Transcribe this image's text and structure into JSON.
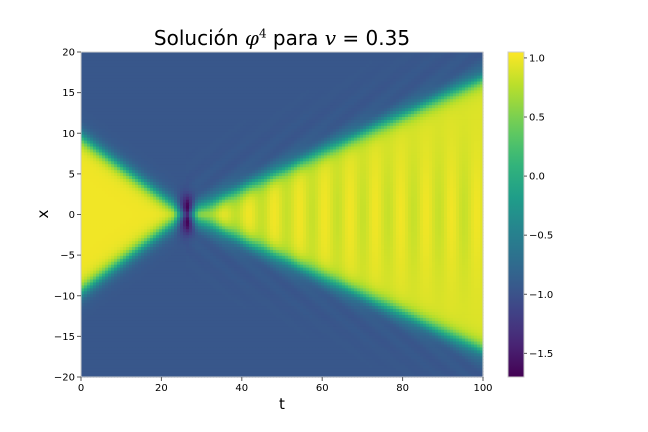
{
  "chart_data": {
    "type": "heatmap",
    "title": {
      "prefix": "Solución ",
      "phi": "φ",
      "exponent": "4",
      "middle": " para ",
      "v": "v",
      "suffix": " = 0.35"
    },
    "xlabel": "t",
    "ylabel": "x",
    "xlim": [
      0,
      100
    ],
    "ylim": [
      -20,
      20
    ],
    "xticks": [
      0,
      20,
      40,
      60,
      80,
      100
    ],
    "yticks": [
      -20,
      -15,
      -10,
      -5,
      0,
      5,
      10,
      15,
      20
    ],
    "colorbar": {
      "colormap": "viridis",
      "range": [
        -1.7,
        1.05
      ],
      "ticks": [
        "1.0",
        "0.5",
        "0.0",
        "−0.5",
        "−1.0",
        "−1.5"
      ],
      "tick_values": [
        1.0,
        0.5,
        0.0,
        -0.5,
        -1.0,
        -1.5
      ]
    },
    "field": {
      "description_values": "phi(t, x): vacuum -1 outside, +1 inside wedge",
      "background": -0.95,
      "inside": 1.0,
      "collision_t": 26,
      "collision_min": -1.7,
      "incoming_front_x0": 9.5,
      "outgoing_front_at_t100": 16.8,
      "wall_width": 1.2
    },
    "grid": false
  }
}
